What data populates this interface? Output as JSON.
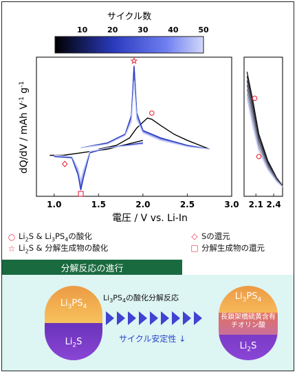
{
  "chart_data": [
    {
      "type": "line",
      "xlabel": "電圧 / V vs. Li-In",
      "ylabel": "dQ/dV / mAh V-1 g-1",
      "xlim": [
        0.8,
        3.0
      ],
      "x_ticks": [
        "1.0",
        "1.5",
        "2.0",
        "2.5",
        "3.0"
      ],
      "colorbar": {
        "label": "サイクル数",
        "ticks": [
          "10",
          "20",
          "30",
          "40",
          "50"
        ],
        "range": [
          1,
          50
        ],
        "colors": [
          "#000000",
          "#2b3bbf",
          "#6f7ff0",
          "#d2d8fb"
        ]
      },
      "series": [
        {
          "cycle": 1,
          "color": "#000000",
          "charge": [
            [
              1.5,
              0.33
            ],
            [
              1.7,
              0.36
            ],
            [
              1.85,
              0.42
            ],
            [
              1.9,
              0.47
            ],
            [
              1.93,
              0.5
            ],
            [
              2.05,
              0.58
            ],
            [
              2.1,
              0.57
            ],
            [
              2.2,
              0.52
            ],
            [
              2.35,
              0.45
            ],
            [
              2.5,
              0.4
            ],
            [
              2.75,
              0.33
            ]
          ],
          "discharge": [
            [
              2.0,
              0.4
            ],
            [
              1.6,
              0.33
            ],
            [
              1.3,
              0.3
            ],
            [
              1.1,
              0.28
            ],
            [
              0.95,
              0.28
            ]
          ]
        },
        {
          "cycle": 25,
          "color": "#2b3bbf",
          "charge": [
            [
              1.3,
              0.34
            ],
            [
              1.6,
              0.38
            ],
            [
              1.8,
              0.45
            ],
            [
              1.87,
              0.6
            ],
            [
              1.9,
              1.0
            ],
            [
              1.93,
              0.62
            ],
            [
              2.0,
              0.48
            ],
            [
              2.2,
              0.42
            ],
            [
              2.5,
              0.36
            ],
            [
              2.75,
              0.33
            ]
          ],
          "discharge": [
            [
              2.0,
              0.38
            ],
            [
              1.6,
              0.34
            ],
            [
              1.4,
              0.3
            ],
            [
              1.33,
              0.1
            ],
            [
              1.3,
              0.0
            ],
            [
              1.27,
              0.12
            ],
            [
              1.2,
              0.26
            ],
            [
              1.0,
              0.27
            ]
          ]
        },
        {
          "cycle": 50,
          "color": "#c9d0fa",
          "charge": [
            [
              1.3,
              0.34
            ],
            [
              1.6,
              0.37
            ],
            [
              1.8,
              0.44
            ],
            [
              1.87,
              0.55
            ],
            [
              1.9,
              0.88
            ],
            [
              1.93,
              0.57
            ],
            [
              2.0,
              0.46
            ],
            [
              2.2,
              0.4
            ],
            [
              2.5,
              0.35
            ],
            [
              2.75,
              0.33
            ]
          ],
          "discharge": [
            [
              2.0,
              0.37
            ],
            [
              1.6,
              0.34
            ],
            [
              1.4,
              0.31
            ],
            [
              1.33,
              0.16
            ],
            [
              1.3,
              0.08
            ],
            [
              1.27,
              0.17
            ],
            [
              1.2,
              0.27
            ],
            [
              1.0,
              0.28
            ]
          ]
        }
      ],
      "markers": [
        {
          "type": "star",
          "x": 1.9,
          "y": 1.04
        },
        {
          "type": "circle",
          "x": 2.1,
          "y": 0.62
        },
        {
          "type": "diamond",
          "x": 1.12,
          "y": 0.21
        },
        {
          "type": "square",
          "x": 1.3,
          "y": -0.03
        }
      ]
    },
    {
      "type": "line",
      "xlim": [
        1.9,
        2.55
      ],
      "x_ticks": [
        "2.1",
        "2.4"
      ],
      "series": [
        {
          "cycle": 1,
          "color": "#000000",
          "values": [
            [
              1.95,
              0.92
            ],
            [
              2.05,
              0.7
            ],
            [
              2.15,
              0.45
            ],
            [
              2.3,
              0.25
            ],
            [
              2.45,
              0.12
            ],
            [
              2.55,
              0.06
            ]
          ]
        },
        {
          "cycle": 25,
          "color": "#2b3bbf",
          "values": [
            [
              1.95,
              0.78
            ],
            [
              2.05,
              0.56
            ],
            [
              2.15,
              0.36
            ],
            [
              2.3,
              0.2
            ],
            [
              2.45,
              0.1
            ],
            [
              2.55,
              0.05
            ]
          ]
        },
        {
          "cycle": 50,
          "color": "#c9d0fa",
          "values": [
            [
              1.95,
              0.72
            ],
            [
              2.05,
              0.5
            ],
            [
              2.15,
              0.32
            ],
            [
              2.3,
              0.18
            ],
            [
              2.45,
              0.09
            ],
            [
              2.55,
              0.05
            ]
          ]
        }
      ],
      "markers": [
        {
          "type": "circle",
          "x": 2.08,
          "y": 0.72
        },
        {
          "type": "circle",
          "x": 2.15,
          "y": 0.28
        }
      ]
    }
  ],
  "legend": {
    "circle": "Li2S & Li3PS4の酸化",
    "star": "Li2S & 分解生成物の酸化",
    "diamond": "Sの還元",
    "square": "分解生成物の還元"
  },
  "section_title": "分解反応の進行",
  "reaction": {
    "label": "Li3PS4の酸化分解反応",
    "stability": "サイクル安定性 ↓"
  },
  "capsule_left": {
    "top": "Li3PS4",
    "bottom": "Li2S"
  },
  "capsule_right": {
    "top": "Li3PS4",
    "middle": "長鎖架橋硫黄含有チオリン酸",
    "bottom": "Li2S"
  },
  "colors": {
    "marker": "#e8354a",
    "banner": "#1a6a3f",
    "section_bg": "#ddf5f3",
    "arrow": "#4143d2"
  }
}
